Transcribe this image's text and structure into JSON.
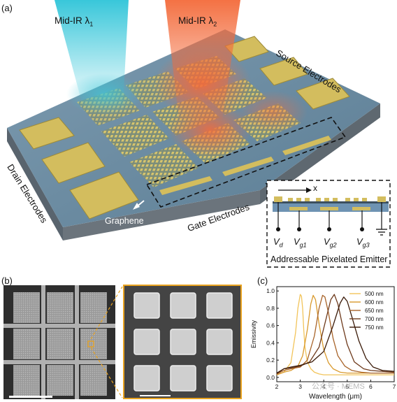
{
  "panel_a": {
    "label": "(a)",
    "beam1_label": "Mid-IR λ",
    "beam1_sub": "1",
    "beam2_label": "Mid-IR λ",
    "beam2_sub": "2",
    "source_label": "Source Electrodes",
    "drain_label": "Drain Electrodes",
    "gate_label": "Gate Electrodes",
    "graphene_label": "Graphene",
    "inset": {
      "axis_label": "x",
      "vd": "V",
      "vd_sub": "d",
      "vg1": "V",
      "vg1_sub": "g1",
      "vg2": "V",
      "vg2_sub": "g2",
      "vg3": "V",
      "vg3_sub": "g3",
      "caption": "Addressable Pixelated Emitter"
    },
    "colors": {
      "gold": "#d3bd5e",
      "slab": "#5e7f96",
      "beam_cyan": "#3ec9da",
      "beam_orange": "#f27a42"
    }
  },
  "panel_b": {
    "label": "(b)"
  },
  "panel_c": {
    "label": "(c)",
    "watermark": "公众号 · MEMS"
  },
  "chart_data": {
    "type": "line",
    "xlabel": "Wavelength (μm)",
    "ylabel": "Emissivity",
    "xlim": [
      2,
      7
    ],
    "ylim": [
      -0.05,
      1.05
    ],
    "xticks": [
      "2",
      "3",
      "4",
      "5",
      "6",
      "7"
    ],
    "yticks": [
      "0.0",
      "0.2",
      "0.4",
      "0.6",
      "0.8",
      "1.0"
    ],
    "legend_position": "top-right",
    "series": [
      {
        "name": "500 nm",
        "color": "#f2c45a",
        "x": [
          2.0,
          2.3,
          2.6,
          2.8,
          2.9,
          3.0,
          3.05,
          3.1,
          3.15,
          3.2,
          3.3,
          3.45,
          3.6,
          3.8,
          4.0,
          4.5,
          5.0,
          5.5,
          6.0,
          6.5,
          7.0
        ],
        "y": [
          0.03,
          0.06,
          0.17,
          0.52,
          0.8,
          0.96,
          0.94,
          0.8,
          0.55,
          0.35,
          0.18,
          0.1,
          0.06,
          0.04,
          0.03,
          0.03,
          0.03,
          0.03,
          0.03,
          0.03,
          0.03
        ]
      },
      {
        "name": "600 nm",
        "color": "#d99a2e",
        "x": [
          2.0,
          2.3,
          2.6,
          2.9,
          3.1,
          3.3,
          3.45,
          3.55,
          3.65,
          3.8,
          4.0,
          4.2,
          4.4,
          4.7,
          5.0,
          5.5,
          6.0,
          6.5,
          7.0
        ],
        "y": [
          0.03,
          0.06,
          0.08,
          0.13,
          0.25,
          0.55,
          0.85,
          0.95,
          0.9,
          0.62,
          0.32,
          0.17,
          0.1,
          0.06,
          0.05,
          0.05,
          0.05,
          0.05,
          0.05
        ]
      },
      {
        "name": "650 nm",
        "color": "#a8642a",
        "x": [
          2.0,
          2.3,
          2.6,
          3.0,
          3.3,
          3.6,
          3.8,
          3.95,
          4.05,
          4.2,
          4.4,
          4.6,
          4.9,
          5.2,
          5.6,
          6.0,
          6.5,
          7.0
        ],
        "y": [
          0.04,
          0.08,
          0.1,
          0.12,
          0.2,
          0.48,
          0.8,
          0.95,
          0.93,
          0.75,
          0.45,
          0.25,
          0.13,
          0.08,
          0.06,
          0.05,
          0.05,
          0.05
        ]
      },
      {
        "name": "700 nm",
        "color": "#6e3a1c",
        "x": [
          2.0,
          2.3,
          2.6,
          3.0,
          3.4,
          3.8,
          4.1,
          4.3,
          4.45,
          4.6,
          4.8,
          5.0,
          5.3,
          5.7,
          6.0,
          6.5,
          7.0
        ],
        "y": [
          0.04,
          0.1,
          0.11,
          0.13,
          0.18,
          0.35,
          0.68,
          0.9,
          0.96,
          0.85,
          0.6,
          0.38,
          0.18,
          0.1,
          0.08,
          0.07,
          0.06
        ]
      },
      {
        "name": "750 nm",
        "color": "#3a1a08",
        "x": [
          2.0,
          2.3,
          2.6,
          3.0,
          3.5,
          4.0,
          4.4,
          4.7,
          4.85,
          5.0,
          5.2,
          5.5,
          5.8,
          6.1,
          6.5,
          7.0
        ],
        "y": [
          0.05,
          0.1,
          0.12,
          0.14,
          0.18,
          0.3,
          0.6,
          0.86,
          0.93,
          0.88,
          0.7,
          0.42,
          0.22,
          0.12,
          0.08,
          0.07
        ]
      }
    ]
  }
}
